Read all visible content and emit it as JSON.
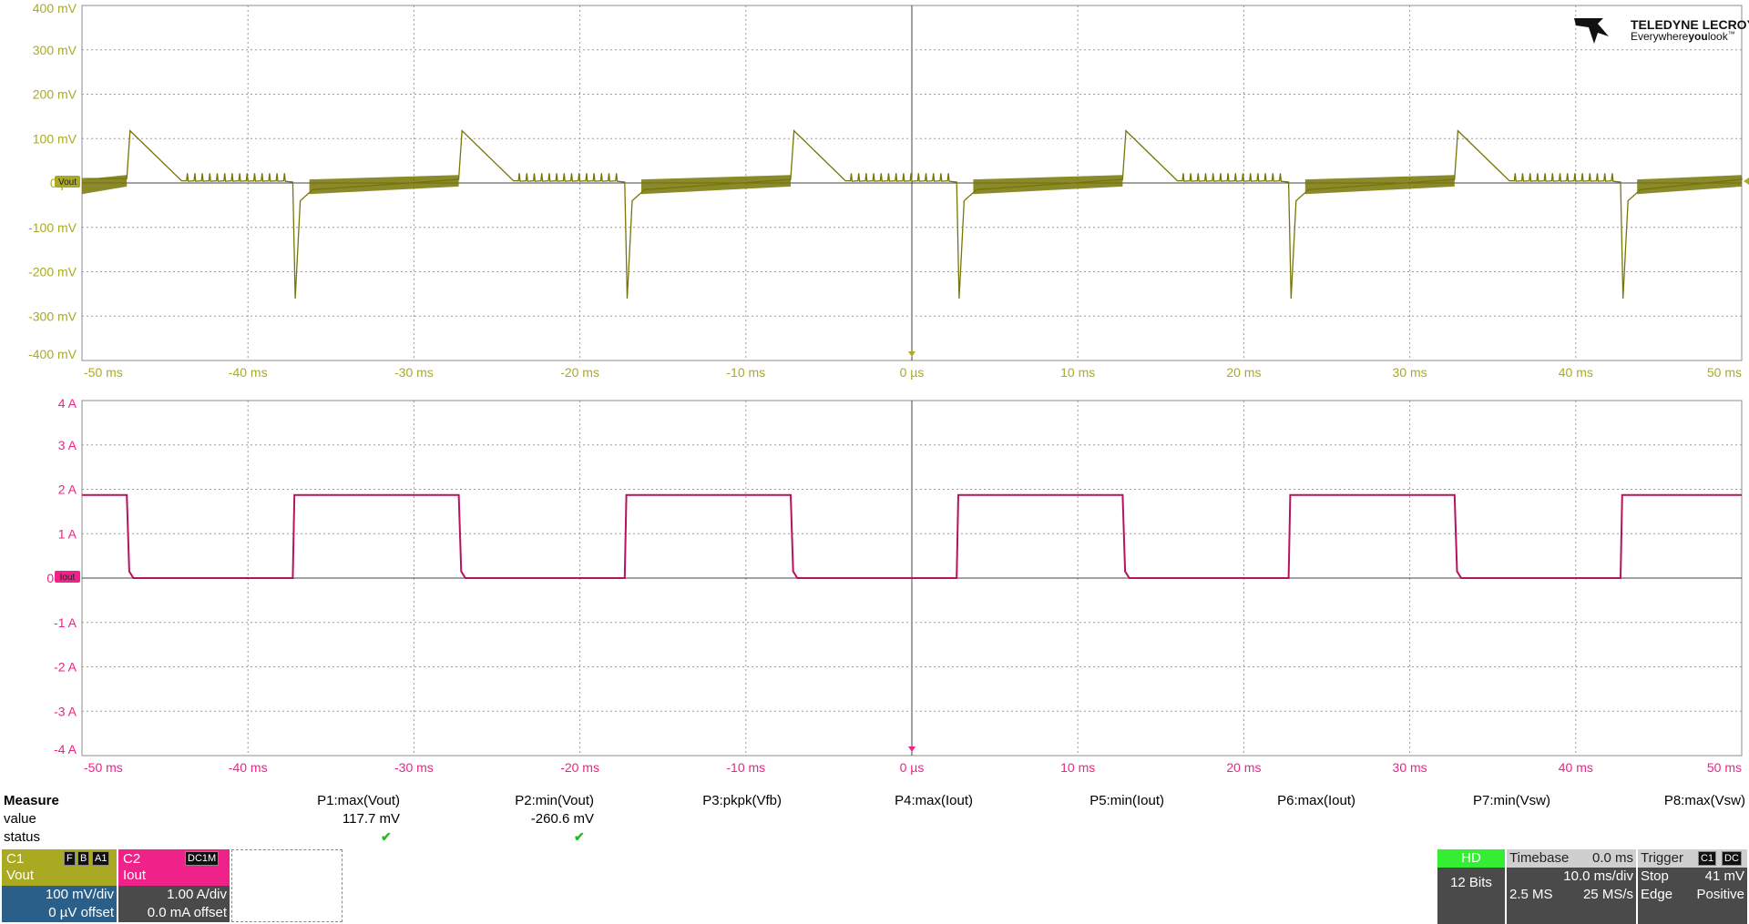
{
  "colors": {
    "ch1": "#767606",
    "ch1_label": "#aaaa22",
    "ch2": "#b8115e",
    "ch2_label": "#ee2288",
    "grid": "#8c8c8c",
    "hd_green": "#33ee33",
    "panel_dark": "#4a4a4a",
    "panel_blue": "#2a5f8a"
  },
  "logo": {
    "brand": "TELEDYNE LECROY",
    "tagline_a": "Everywhere",
    "tagline_b": "you",
    "tagline_c": "look",
    "tagline_tm": "™",
    "icon": "teledyne-lecroy-logo-icon"
  },
  "grid1": {
    "ylabels": [
      "400 mV",
      "300 mV",
      "200 mV",
      "100 mV",
      "0 µV",
      "-100 mV",
      "-200 mV",
      "-300 mV",
      "-400 mV"
    ],
    "xlabels": [
      "-50 ms",
      "-40 ms",
      "-30 ms",
      "-20 ms",
      "-10 ms",
      "0 µs",
      "10 ms",
      "20 ms",
      "30 ms",
      "40 ms",
      "50 ms"
    ],
    "marker": "Vout"
  },
  "grid2": {
    "ylabels": [
      "4 A",
      "3 A",
      "2 A",
      "1 A",
      "0 mA",
      "-1 A",
      "-2 A",
      "-3 A",
      "-4 A"
    ],
    "xlabels": [
      "-50 ms",
      "-40 ms",
      "-30 ms",
      "-20 ms",
      "-10 ms",
      "0 µs",
      "10 ms",
      "20 ms",
      "30 ms",
      "40 ms",
      "50 ms"
    ],
    "marker": "Iout"
  },
  "chart_data": [
    {
      "type": "line",
      "channel": "C1",
      "xunit": "ms",
      "xlim": [
        -50,
        50
      ],
      "ylabel_unit": "mV",
      "ylim": [
        -400,
        400
      ],
      "period_ms": 20,
      "note_shape": "load-transient sawtooth ripple",
      "peak_max_mV": 117.7,
      "peak_min_mV": -260.6,
      "rising_edges_ms": [
        -47.3,
        -27.3,
        -7.3,
        12.7,
        32.7
      ],
      "falling_edges_ms": [
        -37.3,
        -17.3,
        2.7,
        22.7,
        42.7
      ]
    },
    {
      "type": "line",
      "channel": "C2",
      "xunit": "ms",
      "xlim": [
        -50,
        50
      ],
      "yunit": "A",
      "ylim": [
        -4,
        4
      ],
      "high_A": 1.87,
      "low_A": 0.0,
      "high_start_ms": [
        -37.3,
        -17.3,
        2.7,
        22.7,
        42.7
      ],
      "high_end_ms": [
        -47.3,
        -27.3,
        -7.3,
        12.7,
        32.7
      ]
    }
  ],
  "measure": {
    "header": "Measure",
    "row_value": "value",
    "row_status": "status",
    "params": [
      "P1:max(Vout)",
      "P2:min(Vout)",
      "P3:pkpk(Vfb)",
      "P4:max(Iout)",
      "P5:min(Iout)",
      "P6:max(Iout)",
      "P7:min(Vsw)",
      "P8:max(Vsw)"
    ],
    "values": [
      "117.7 mV",
      "-260.6 mV",
      "",
      "",
      "",
      "",
      "",
      ""
    ],
    "status_check": "✔"
  },
  "c1": {
    "name": "C1",
    "label": "Vout",
    "badges": [
      "F",
      "B",
      "A1"
    ],
    "vdiv": "100 mV/div",
    "offset": "0 µV offset"
  },
  "c2": {
    "name": "C2",
    "label": "Iout",
    "badge": "DC1M",
    "vdiv": "1.00 A/div",
    "offset": "0.0 mA offset"
  },
  "hd": {
    "label": "HD",
    "bits": "12 Bits"
  },
  "timebase": {
    "title": "Timebase",
    "delay": "0.0 ms",
    "tdiv": "10.0 ms/div",
    "samples": "2.5 MS",
    "rate": "25 MS/s"
  },
  "trigger": {
    "title": "Trigger",
    "ch": "C1",
    "coupling": "DC",
    "mode": "Stop",
    "level": "41 mV",
    "type": "Edge",
    "slope": "Positive"
  }
}
